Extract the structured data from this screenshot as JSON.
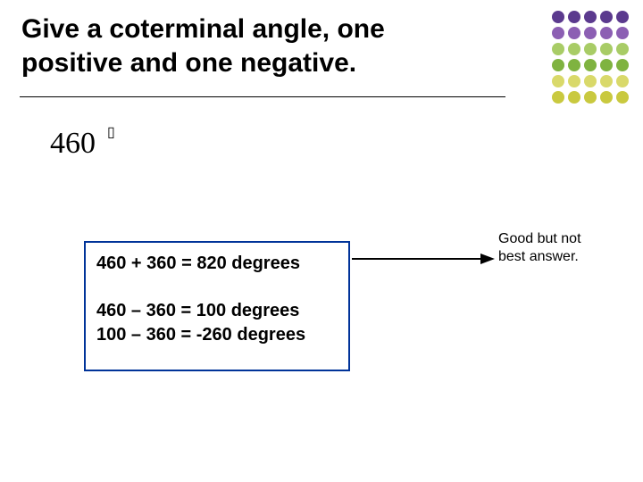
{
  "title": "Give a coterminal angle, one positive and one negative.",
  "angle": {
    "value": "460",
    "degree_glyph": "▯"
  },
  "answers": {
    "line1": "460 + 360 = 820 degrees",
    "line2": "460 – 360 = 100 degrees",
    "line3": "100 – 360 = -260 degrees"
  },
  "note": "Good but not best answer.",
  "box_border_color": "#003399",
  "arrow_color": "#000000",
  "dot_grid": {
    "rows": 6,
    "cols": 5,
    "row_colors": [
      "#5b3a8e",
      "#8c5fb3",
      "#a8cc66",
      "#7fb340",
      "#d9d96a",
      "#c9c93f"
    ]
  }
}
